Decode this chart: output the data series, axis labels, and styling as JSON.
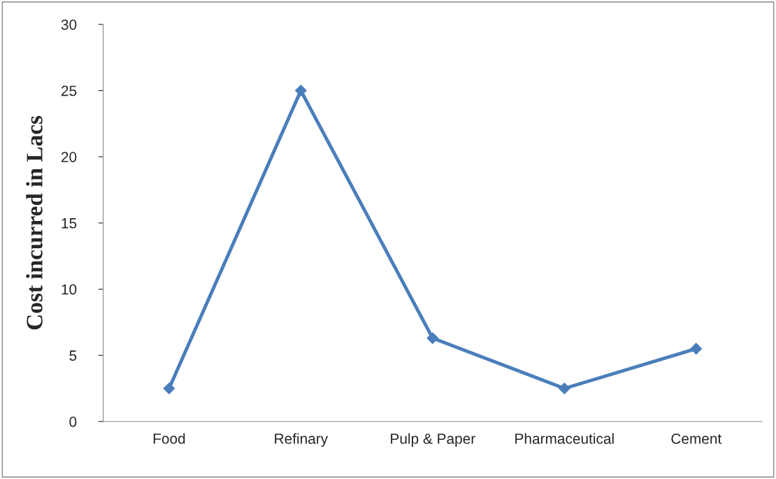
{
  "chart_data": {
    "type": "line",
    "ylabel": "Cost incurred in Lacs",
    "categories": [
      "Food",
      "Refinary",
      "Pulp & Paper",
      "Pharmaceutical",
      "Cement"
    ],
    "series": [
      {
        "color": "#4a7ebb",
        "values": [
          2.5,
          25,
          6.3,
          2.5,
          5.5
        ]
      }
    ],
    "ylim": [
      0,
      30
    ],
    "yticks": [
      0,
      5,
      10,
      15,
      20,
      25,
      30
    ],
    "grid": false,
    "legend": false,
    "marker": "diamond",
    "line_style": "solid"
  }
}
